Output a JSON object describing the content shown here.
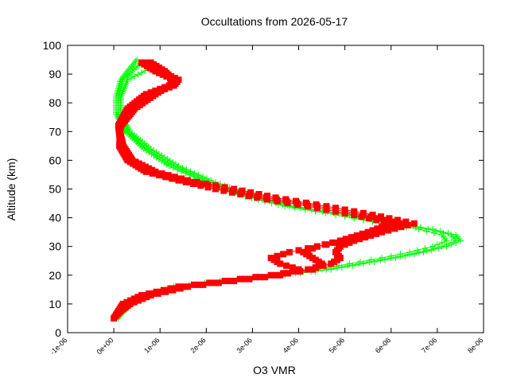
{
  "chart_data": {
    "type": "scatter",
    "title": "Occultations from 2026-05-17",
    "xlabel": "O3 VMR",
    "ylabel": "Altitude (km)",
    "xlim": [
      -1e-06,
      8e-06
    ],
    "ylim": [
      0,
      100
    ],
    "x_ticks": [
      "-1e-06",
      "0e+00",
      "1e-06",
      "2e-06",
      "3e-06",
      "4e-06",
      "5e-06",
      "6e-06",
      "7e-06",
      "8e-06"
    ],
    "y_ticks": [
      "0",
      "10",
      "20",
      "30",
      "40",
      "50",
      "60",
      "70",
      "80",
      "90",
      "100"
    ],
    "grid": false,
    "legend": "none",
    "series": [
      {
        "color": "#00ff00",
        "marker": "plus",
        "profiles": [
          {
            "x": [
              1e-07,
              3e-07,
              7e-07,
              1.5e-06,
              2.5e-06,
              3.6e-06,
              4.6e-06,
              5.3e-06,
              6e-06,
              6.6e-06,
              7.1e-06,
              7.4e-06,
              7.3e-06,
              6.8e-06,
              6e-06,
              5e-06,
              3.8e-06,
              2.8e-06,
              2e-06,
              1.3e-06,
              7e-07,
              3e-07,
              1e-07,
              1e-07,
              2e-07,
              6e-07
            ],
            "y": [
              5,
              10,
              13,
              16,
              18,
              20,
              22,
              24,
              26,
              28,
              30,
              32,
              34,
              36,
              38,
              41,
              44,
              48,
              53,
              58,
              64,
              70,
              76,
              82,
              88,
              94
            ]
          },
          {
            "x": [
              5e-08,
              2.5e-07,
              6e-07,
              1.3e-06,
              2.3e-06,
              3.4e-06,
              4.4e-06,
              5.1e-06,
              5.8e-06,
              6.4e-06,
              6.9e-06,
              7.2e-06,
              7.1e-06,
              6.6e-06,
              5.8e-06,
              4.8e-06,
              3.7e-06,
              2.7e-06,
              1.9e-06,
              1.2e-06,
              6.5e-07,
              2.5e-07,
              5e-08,
              5e-08,
              1.5e-07,
              5e-07
            ],
            "y": [
              6,
              10,
              13,
              16,
              18,
              20,
              22,
              24,
              26,
              28,
              30,
              32,
              34,
              36,
              38,
              41,
              44,
              48,
              53,
              58,
              64,
              70,
              76,
              82,
              88,
              95
            ]
          },
          {
            "x": [
              2e-07,
              4e-07,
              8e-07,
              1.6e-06,
              2.6e-06,
              3.7e-06,
              4.7e-06,
              5.4e-06,
              6.1e-06,
              6.7e-06,
              7.2e-06,
              7.5e-06,
              7.4e-06,
              6.9e-06,
              6.1e-06,
              5.1e-06,
              3.9e-06,
              2.9e-06,
              2.1e-06,
              1.4e-06,
              8e-07,
              3.5e-07,
              1.5e-07,
              1.5e-07,
              3e-07,
              9e-07
            ],
            "y": [
              7,
              10,
              13,
              16,
              18,
              20,
              22,
              24,
              26,
              28,
              30,
              32,
              34,
              36,
              38,
              41,
              44,
              48,
              53,
              58,
              64,
              70,
              76,
              82,
              88,
              93
            ]
          }
        ]
      },
      {
        "color": "#ff0000",
        "marker": "square",
        "profiles": [
          {
            "x": [
              0.0,
              2e-07,
              6e-07,
              1.4e-06,
              2.4e-06,
              3.4e-06,
              4.2e-06,
              4.7e-06,
              4.9e-06,
              4.8e-06,
              4.9e-06,
              5.2e-06,
              5.8e-06,
              6.5e-06,
              5.6e-06,
              4.6e-06,
              3.5e-06,
              2.6e-06,
              1.6e-06,
              9e-07,
              4e-07,
              2e-07,
              1e-07,
              3e-07,
              7e-07,
              1.2e-06,
              1.3e-06,
              9e-07,
              6e-07
            ],
            "y": [
              5,
              10,
              13,
              16,
              18,
              20,
              22,
              24,
              26,
              28,
              30,
              32,
              35,
              38,
              41,
              44,
              47,
              50,
              53,
              56,
              60,
              65,
              72,
              78,
              83,
              86,
              88,
              91,
              94
            ]
          },
          {
            "x": [
              5e-08,
              3e-07,
              7e-07,
              1.5e-06,
              2.5e-06,
              3.5e-06,
              4.3e-06,
              4.5e-06,
              4.3e-06,
              4.1e-06,
              4.4e-06,
              5e-06,
              5.6e-06,
              6.2e-06,
              5.4e-06,
              4.4e-06,
              3.3e-06,
              2.4e-06,
              1.5e-06,
              8e-07,
              3.5e-07,
              1.5e-07,
              1e-07,
              3.5e-07,
              8e-07,
              1.3e-06,
              1.4e-06,
              1e-06,
              7e-07
            ],
            "y": [
              6,
              10,
              13,
              16,
              18,
              20,
              22,
              24,
              26,
              28,
              30,
              32,
              35,
              38,
              41,
              44,
              47,
              50,
              53,
              56,
              60,
              65,
              72,
              78,
              83,
              86,
              88,
              91,
              94
            ]
          },
          {
            "x": [
              1e-07,
              3.5e-07,
              8e-07,
              1.6e-06,
              2.6e-06,
              3.6e-06,
              4e-06,
              3.6e-06,
              3.4e-06,
              3.8e-06,
              4.4e-06,
              4.9e-06,
              5.5e-06,
              6e-06,
              5.2e-06,
              4.2e-06,
              3.1e-06,
              2.2e-06,
              1.4e-06,
              7e-07,
              3e-07,
              1.2e-07,
              1.5e-07,
              4.5e-07,
              9e-07,
              1.2e-06,
              1.3e-06,
              1.1e-06,
              8e-07
            ],
            "y": [
              7,
              10,
              13,
              16,
              18,
              20,
              22,
              24,
              26,
              28,
              30,
              32,
              35,
              38,
              41,
              44,
              47,
              50,
              53,
              56,
              60,
              65,
              72,
              78,
              83,
              86,
              88,
              91,
              94
            ]
          }
        ]
      }
    ]
  }
}
